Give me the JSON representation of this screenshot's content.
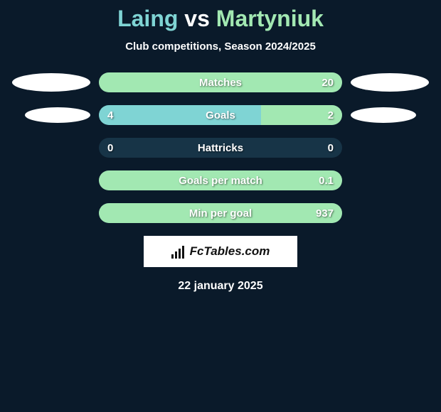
{
  "title": {
    "player1": "Laing",
    "vs": "vs",
    "player2": "Martyniuk"
  },
  "subtitle": "Club competitions, Season 2024/2025",
  "colors": {
    "p1": "#7fd4d4",
    "p2": "#a2e8b2",
    "track": "#173447",
    "text_shadow": "rgba(0,0,0,0.55)"
  },
  "rows": [
    {
      "label": "Matches",
      "left_value": "",
      "right_value": "20",
      "left_pct": 0,
      "right_pct": 100,
      "left_color": "#7fd4d4",
      "right_color": "#a2e8b2",
      "ellipse": "big"
    },
    {
      "label": "Goals",
      "left_value": "4",
      "right_value": "2",
      "left_pct": 66.7,
      "right_pct": 33.3,
      "left_color": "#7fd4d4",
      "right_color": "#a2e8b2",
      "ellipse": "small"
    },
    {
      "label": "Hattricks",
      "left_value": "0",
      "right_value": "0",
      "left_pct": 0,
      "right_pct": 0,
      "left_color": "#7fd4d4",
      "right_color": "#a2e8b2",
      "ellipse": "none"
    },
    {
      "label": "Goals per match",
      "left_value": "",
      "right_value": "0.1",
      "left_pct": 0,
      "right_pct": 100,
      "left_color": "#7fd4d4",
      "right_color": "#a2e8b2",
      "ellipse": "none"
    },
    {
      "label": "Min per goal",
      "left_value": "",
      "right_value": "937",
      "left_pct": 0,
      "right_pct": 100,
      "left_color": "#7fd4d4",
      "right_color": "#a2e8b2",
      "ellipse": "none"
    }
  ],
  "logo_text": "FcTables.com",
  "date": "22 january 2025"
}
